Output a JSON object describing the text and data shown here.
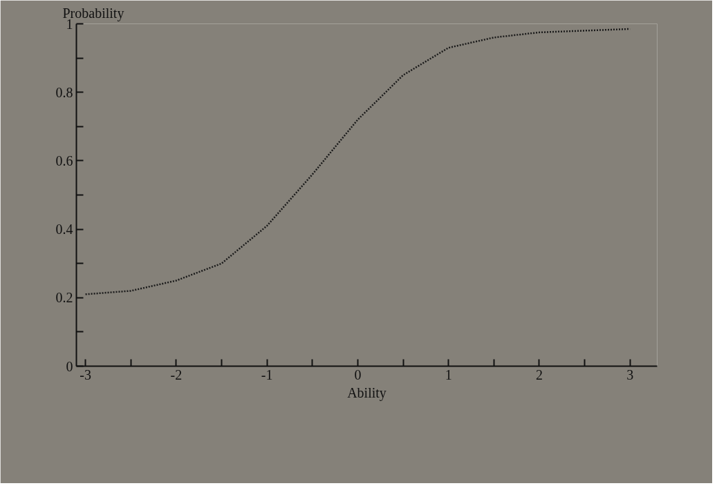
{
  "chart_data": {
    "type": "line",
    "xlabel": "Ability",
    "ylabel": "Probability",
    "x": [
      -3,
      -2.5,
      -2,
      -1.5,
      -1,
      -0.5,
      -0.25,
      0,
      0.5,
      1,
      1.5,
      2,
      2.5,
      3
    ],
    "series": [
      {
        "color": "#1a1a1a",
        "values": [
          0.21,
          0.22,
          0.25,
          0.3,
          0.41,
          0.56,
          0.64,
          0.72,
          0.85,
          0.93,
          0.96,
          0.975,
          0.98,
          0.985
        ]
      }
    ],
    "xlim": [
      -3.1,
      3.3
    ],
    "ylim": [
      0,
      1
    ],
    "xticks": [
      -3,
      {
        "value": -2.5,
        "label": null
      },
      -2,
      {
        "value": -1.5,
        "label": null
      },
      -1,
      {
        "value": -0.5,
        "label": null
      },
      0,
      {
        "value": 0.5,
        "label": null
      },
      1,
      {
        "value": 1.5,
        "label": null
      },
      2,
      {
        "value": 2.5,
        "label": null
      },
      3
    ],
    "yticks": [
      0,
      {
        "value": 0.1,
        "label": null
      },
      0.2,
      {
        "value": 0.3,
        "label": null
      },
      0.4,
      {
        "value": 0.5,
        "label": null
      },
      0.6,
      {
        "value": 0.7,
        "label": null
      },
      0.8,
      {
        "value": 0.9,
        "label": null
      },
      1
    ],
    "grid": false,
    "line_style": "dotted",
    "marker": "none"
  }
}
